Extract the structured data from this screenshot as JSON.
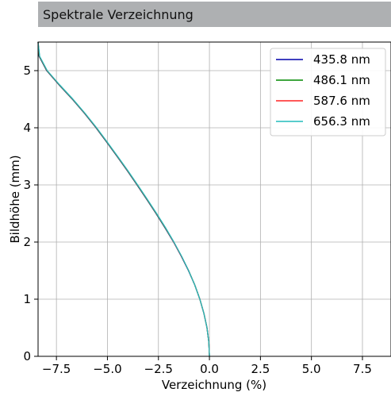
{
  "title": "Spektrale Verzeichnung",
  "chart_data": {
    "type": "line",
    "xlabel": "Verzeichnung (%)",
    "ylabel": "Bildhöhe (mm)",
    "xlim": [
      -8.4,
      8.9
    ],
    "ylim": [
      0,
      5.5
    ],
    "grid": true,
    "legend_position": "top-right",
    "xticks": [
      -7.5,
      -5.0,
      -2.5,
      0.0,
      2.5,
      5.0,
      7.5
    ],
    "xtick_labels": [
      "−7.5",
      "−5.0",
      "−2.5",
      "0.0",
      "2.5",
      "5.0",
      "7.5"
    ],
    "yticks": [
      0,
      1,
      2,
      3,
      4,
      5
    ],
    "ytick_labels": [
      "0",
      "1",
      "2",
      "3",
      "4",
      "5"
    ],
    "series": [
      {
        "name": "435.8 nm",
        "color": "#0000aa",
        "points": [
          [
            0,
            0
          ],
          [
            -0.03,
            0.25
          ],
          [
            -0.12,
            0.5
          ],
          [
            -0.27,
            0.75
          ],
          [
            -0.47,
            1.0
          ],
          [
            -0.72,
            1.25
          ],
          [
            -1.03,
            1.5
          ],
          [
            -1.38,
            1.75
          ],
          [
            -1.76,
            2.0
          ],
          [
            -2.18,
            2.25
          ],
          [
            -2.62,
            2.5
          ],
          [
            -3.08,
            2.75
          ],
          [
            -3.55,
            3.0
          ],
          [
            -4.03,
            3.25
          ],
          [
            -4.53,
            3.5
          ],
          [
            -5.04,
            3.75
          ],
          [
            -5.56,
            4.0
          ],
          [
            -6.12,
            4.25
          ],
          [
            -6.72,
            4.5
          ],
          [
            -7.37,
            4.75
          ],
          [
            -7.98,
            5.0
          ],
          [
            -8.35,
            5.25
          ],
          [
            -8.4,
            5.5
          ]
        ]
      },
      {
        "name": "486.1 nm",
        "color": "#008800",
        "points": [
          [
            0,
            0
          ],
          [
            -0.03,
            0.25
          ],
          [
            -0.12,
            0.5
          ],
          [
            -0.27,
            0.75
          ],
          [
            -0.47,
            1.0
          ],
          [
            -0.72,
            1.25
          ],
          [
            -1.02,
            1.5
          ],
          [
            -1.37,
            1.75
          ],
          [
            -1.75,
            2.0
          ],
          [
            -2.17,
            2.25
          ],
          [
            -2.61,
            2.5
          ],
          [
            -3.07,
            2.75
          ],
          [
            -3.54,
            3.0
          ],
          [
            -4.02,
            3.25
          ],
          [
            -4.52,
            3.5
          ],
          [
            -5.03,
            3.75
          ],
          [
            -5.55,
            4.0
          ],
          [
            -6.11,
            4.25
          ],
          [
            -6.71,
            4.5
          ],
          [
            -7.36,
            4.75
          ],
          [
            -7.97,
            5.0
          ],
          [
            -8.34,
            5.25
          ],
          [
            -8.4,
            5.5
          ]
        ]
      },
      {
        "name": "587.6 nm",
        "color": "#ff2222",
        "points": [
          [
            0,
            0
          ],
          [
            -0.03,
            0.25
          ],
          [
            -0.12,
            0.5
          ],
          [
            -0.27,
            0.75
          ],
          [
            -0.47,
            1.0
          ],
          [
            -0.72,
            1.25
          ],
          [
            -1.02,
            1.5
          ],
          [
            -1.37,
            1.75
          ],
          [
            -1.75,
            2.0
          ],
          [
            -2.16,
            2.25
          ],
          [
            -2.6,
            2.5
          ],
          [
            -3.06,
            2.75
          ],
          [
            -3.53,
            3.0
          ],
          [
            -4.01,
            3.25
          ],
          [
            -4.51,
            3.5
          ],
          [
            -5.02,
            3.75
          ],
          [
            -5.54,
            4.0
          ],
          [
            -6.1,
            4.25
          ],
          [
            -6.7,
            4.5
          ],
          [
            -7.35,
            4.75
          ],
          [
            -7.96,
            5.0
          ],
          [
            -8.33,
            5.25
          ],
          [
            -8.4,
            5.5
          ]
        ]
      },
      {
        "name": "656.3 nm",
        "color": "#22bbbb",
        "points": [
          [
            0,
            0
          ],
          [
            -0.03,
            0.25
          ],
          [
            -0.12,
            0.5
          ],
          [
            -0.27,
            0.75
          ],
          [
            -0.47,
            1.0
          ],
          [
            -0.72,
            1.25
          ],
          [
            -1.02,
            1.5
          ],
          [
            -1.36,
            1.75
          ],
          [
            -1.74,
            2.0
          ],
          [
            -2.15,
            2.25
          ],
          [
            -2.59,
            2.5
          ],
          [
            -3.05,
            2.75
          ],
          [
            -3.52,
            3.0
          ],
          [
            -4.0,
            3.25
          ],
          [
            -4.5,
            3.5
          ],
          [
            -5.01,
            3.75
          ],
          [
            -5.53,
            4.0
          ],
          [
            -6.09,
            4.25
          ],
          [
            -6.69,
            4.5
          ],
          [
            -7.34,
            4.75
          ],
          [
            -7.95,
            5.0
          ],
          [
            -8.32,
            5.25
          ],
          [
            -8.4,
            5.5
          ]
        ]
      }
    ]
  }
}
